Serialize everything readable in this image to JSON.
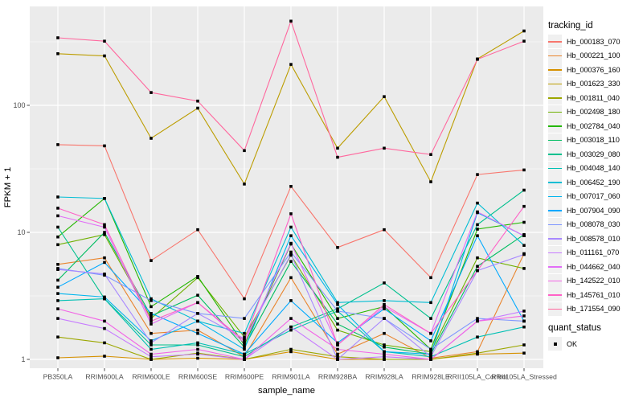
{
  "chart_data": {
    "type": "line",
    "title": "",
    "xlabel": "sample_name",
    "ylabel": "FPKM + 1",
    "y_scale": "log10",
    "ylim": [
      0.85,
      700
    ],
    "y_ticks": [
      1,
      10,
      100
    ],
    "y_tick_labels": [
      "1",
      "10",
      "100"
    ],
    "y_minor": [
      3.162,
      31.62,
      316.2
    ],
    "grid": true,
    "panel_bg": "#EBEBEB",
    "grid_color": "#FFFFFF",
    "tick_label_color": "#4D4D4D",
    "marker": {
      "shape": "square",
      "color": "#000000"
    },
    "legend": {
      "title": "tracking_id",
      "position": "right"
    },
    "quant_status": {
      "title": "quant_status",
      "items": [
        {
          "label": "OK",
          "marker": "square",
          "color": "#000000"
        }
      ]
    },
    "categories": [
      "PB350LA",
      "RRIM600LA",
      "RRIM600LE",
      "RRIM600SE",
      "RRIM600PE",
      "RRIM901LA",
      "RRIM928BA",
      "RRIM928LA",
      "RRIM928LE",
      "RRII105LA_Control",
      "RRII105LA_Stressed"
    ],
    "series": [
      {
        "name": "Hb_000183_070",
        "color": "#F8766D",
        "values": [
          49,
          48,
          6,
          10.5,
          3,
          23,
          7.6,
          10.5,
          4.4,
          28.5,
          31
        ]
      },
      {
        "name": "Hb_000221_100",
        "color": "#E9842C",
        "values": [
          5.6,
          6.3,
          1.6,
          1.7,
          1.05,
          4.4,
          1.1,
          1.6,
          1.02,
          1.15,
          6.8
        ]
      },
      {
        "name": "Hb_000376_160",
        "color": "#D69100",
        "values": [
          1.03,
          1.06,
          1.0,
          1.02,
          1.0,
          1.15,
          1.0,
          1.0,
          1.0,
          1.1,
          1.12
        ]
      },
      {
        "name": "Hb_001623_330",
        "color": "#BC9D00",
        "values": [
          255,
          245,
          55,
          95,
          24,
          210,
          46,
          117,
          25,
          232,
          385
        ]
      },
      {
        "name": "Hb_001811_040",
        "color": "#9CA700",
        "values": [
          1.5,
          1.35,
          1.0,
          1.12,
          1.0,
          1.2,
          1.05,
          1.0,
          1.0,
          1.12,
          1.3
        ]
      },
      {
        "name": "Hb_002498_180",
        "color": "#6FB000",
        "values": [
          8,
          9.6,
          2.1,
          4.4,
          1.5,
          6.6,
          1.7,
          1.3,
          1.15,
          6.3,
          5.2
        ]
      },
      {
        "name": "Hb_002784_040",
        "color": "#24B700",
        "values": [
          9.2,
          18.5,
          2.6,
          4.5,
          1.3,
          8.1,
          2.1,
          2.6,
          1.2,
          10.6,
          12
        ]
      },
      {
        "name": "Hb_003018_110",
        "color": "#00BD61",
        "values": [
          4.2,
          10,
          2.2,
          3.2,
          1.25,
          5.9,
          1.9,
          1.25,
          1.1,
          5.4,
          9.6
        ]
      },
      {
        "name": "Hb_003029_080",
        "color": "#00C08E",
        "values": [
          11,
          3.0,
          1.3,
          1.3,
          1.05,
          1.8,
          2.5,
          4.0,
          2.1,
          11.5,
          21.5
        ]
      },
      {
        "name": "Hb_004048_140",
        "color": "#00C0B4",
        "values": [
          2.9,
          3.0,
          1.2,
          1.35,
          1.1,
          1.7,
          2.4,
          1.15,
          1.05,
          1.5,
          1.8
        ]
      },
      {
        "name": "Hb_006452_190",
        "color": "#00BDD4",
        "values": [
          19,
          18.5,
          3.0,
          2.0,
          1.6,
          11,
          2.8,
          2.9,
          2.8,
          17,
          7.9
        ]
      },
      {
        "name": "Hb_007017_060",
        "color": "#00B5EE",
        "values": [
          3.3,
          3.1,
          1.4,
          2.0,
          1.2,
          9.4,
          2.7,
          1.15,
          1.1,
          14.3,
          9.4
        ]
      },
      {
        "name": "Hb_007904_090",
        "color": "#00A9FF",
        "values": [
          3.7,
          5.8,
          2.3,
          1.6,
          1.1,
          2.9,
          1.35,
          2.5,
          1.4,
          9.4,
          2.0
        ]
      },
      {
        "name": "Hb_008078_030",
        "color": "#7F96FF",
        "values": [
          5.2,
          4.6,
          2.9,
          2.3,
          2.1,
          7.0,
          2.4,
          2.1,
          1.2,
          2.1,
          2.0
        ]
      },
      {
        "name": "Hb_008578_010",
        "color": "#A888FF",
        "values": [
          5.1,
          4.7,
          1.35,
          2.3,
          1.45,
          6.7,
          1.0,
          2.1,
          1.05,
          5.0,
          6.7
        ]
      },
      {
        "name": "Hb_011161_070",
        "color": "#C77CFF",
        "values": [
          2.1,
          1.75,
          1.05,
          1.1,
          1.0,
          1.8,
          1.0,
          1.05,
          1.0,
          2.0,
          2.4
        ]
      },
      {
        "name": "Hb_044662_040",
        "color": "#E26EF7",
        "values": [
          13.5,
          11,
          1.9,
          2.8,
          1.35,
          8.2,
          1.3,
          2.6,
          1.6,
          14.5,
          9.4
        ]
      },
      {
        "name": "Hb_142522_010",
        "color": "#F265E6",
        "values": [
          2.5,
          2.0,
          1.1,
          1.2,
          1.0,
          2.1,
          1.2,
          1.1,
          1.0,
          2.0,
          2.2
        ]
      },
      {
        "name": "Hb_145761_010",
        "color": "#FF61C7",
        "values": [
          15.5,
          11.5,
          2.0,
          2.8,
          1.4,
          14,
          1.3,
          2.7,
          1.6,
          5.0,
          16
        ]
      },
      {
        "name": "Hb_171554_090",
        "color": "#FF689E",
        "values": [
          340,
          320,
          126,
          108,
          44,
          460,
          39,
          46,
          41,
          230,
          320
        ]
      }
    ]
  }
}
